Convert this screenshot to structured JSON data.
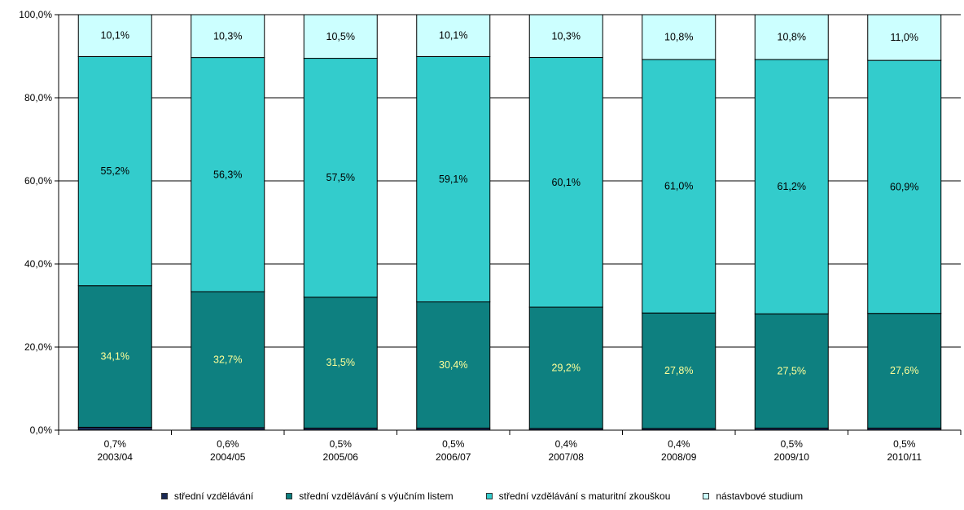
{
  "chart_data": {
    "type": "bar",
    "stacked": true,
    "percent": true,
    "categories": [
      "2003/04",
      "2004/05",
      "2005/06",
      "2006/07",
      "2007/08",
      "2008/09",
      "2009/10",
      "2010/11"
    ],
    "ylim": [
      0,
      100
    ],
    "yticks": [
      0,
      20,
      40,
      60,
      80,
      100
    ],
    "ytick_labels": [
      "0,0%",
      "20,0%",
      "40,0%",
      "60,0%",
      "80,0%",
      "100,0%"
    ],
    "grid": true,
    "legend_position": "bottom",
    "series": [
      {
        "name": "střední vzdělávání",
        "color": "#1a2a55",
        "values": [
          0.7,
          0.6,
          0.5,
          0.5,
          0.4,
          0.4,
          0.5,
          0.5
        ],
        "labels": [
          "0,7%",
          "0,6%",
          "0,5%",
          "0,5%",
          "0,4%",
          "0,4%",
          "0,5%",
          "0,5%"
        ]
      },
      {
        "name": "střední vzdělávání s výučním listem",
        "color": "#0e8080",
        "values": [
          34.1,
          32.7,
          31.5,
          30.4,
          29.2,
          27.8,
          27.5,
          27.6
        ],
        "labels": [
          "34,1%",
          "32,7%",
          "31,5%",
          "30,4%",
          "29,2%",
          "27,8%",
          "27,5%",
          "27,6%"
        ]
      },
      {
        "name": "střední vzdělávání s maturitní zkouškou",
        "color": "#33cccc",
        "values": [
          55.2,
          56.3,
          57.5,
          59.1,
          60.1,
          61.0,
          61.2,
          60.9
        ],
        "labels": [
          "55,2%",
          "56,3%",
          "57,5%",
          "59,1%",
          "60,1%",
          "61,0%",
          "61,2%",
          "60,9%"
        ]
      },
      {
        "name": "nástavbové studium",
        "color": "#ccffff",
        "values": [
          10.1,
          10.3,
          10.5,
          10.1,
          10.3,
          10.8,
          10.8,
          11.0
        ],
        "labels": [
          "10,1%",
          "10,3%",
          "10,5%",
          "10,1%",
          "10,3%",
          "10,8%",
          "10,8%",
          "11,0%"
        ]
      }
    ]
  }
}
